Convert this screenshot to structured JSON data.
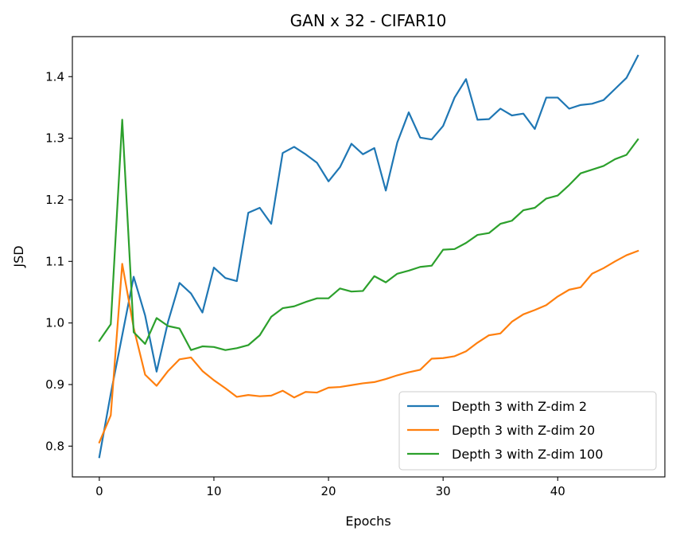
{
  "chart_data": {
    "type": "line",
    "title": "GAN x 32 - CIFAR10",
    "xlabel": "Epochs",
    "ylabel": "JSD",
    "xlim": [
      -2.35,
      49.35
    ],
    "ylim": [
      0.75,
      1.465
    ],
    "xticks": [
      0,
      10,
      20,
      30,
      40
    ],
    "yticks": [
      0.8,
      0.9,
      1.0,
      1.1,
      1.2,
      1.3,
      1.4
    ],
    "ytick_labels": [
      "0.8",
      "0.9",
      "1.0",
      "1.1",
      "1.2",
      "1.3",
      "1.4"
    ],
    "grid": false,
    "legend_position": "lower-right",
    "x": [
      0,
      1,
      2,
      3,
      4,
      5,
      6,
      7,
      8,
      9,
      10,
      11,
      12,
      13,
      14,
      15,
      16,
      17,
      18,
      19,
      20,
      21,
      22,
      23,
      24,
      25,
      26,
      27,
      28,
      29,
      30,
      31,
      32,
      33,
      34,
      35,
      36,
      37,
      38,
      39,
      40,
      41,
      42,
      43,
      44,
      45,
      46,
      47
    ],
    "series": [
      {
        "name": "Depth 3 with Z-dim 2",
        "color": "#1f77b4",
        "values": [
          0.782,
          0.885,
          0.98,
          1.075,
          1.012,
          0.921,
          1.002,
          1.065,
          1.048,
          1.017,
          1.09,
          1.073,
          1.068,
          1.179,
          1.187,
          1.161,
          1.276,
          1.286,
          1.274,
          1.26,
          1.23,
          1.253,
          1.291,
          1.274,
          1.284,
          1.215,
          1.293,
          1.342,
          1.301,
          1.298,
          1.32,
          1.366,
          1.396,
          1.33,
          1.331,
          1.348,
          1.337,
          1.34,
          1.315,
          1.366,
          1.366,
          1.348,
          1.354,
          1.356,
          1.362,
          1.38,
          1.398,
          1.434
        ]
      },
      {
        "name": "Depth 3 with Z-dim 20",
        "color": "#ff7f0e",
        "values": [
          0.806,
          0.85,
          1.096,
          0.992,
          0.916,
          0.898,
          0.922,
          0.941,
          0.944,
          0.922,
          0.907,
          0.894,
          0.88,
          0.883,
          0.881,
          0.882,
          0.89,
          0.879,
          0.888,
          0.887,
          0.895,
          0.896,
          0.899,
          0.902,
          0.904,
          0.909,
          0.915,
          0.92,
          0.924,
          0.942,
          0.943,
          0.946,
          0.954,
          0.968,
          0.98,
          0.983,
          1.002,
          1.014,
          1.021,
          1.029,
          1.043,
          1.054,
          1.058,
          1.08,
          1.089,
          1.1,
          1.11,
          1.117
        ]
      },
      {
        "name": "Depth 3 with Z-dim 100",
        "color": "#2ca02c",
        "values": [
          0.971,
          0.998,
          1.33,
          0.985,
          0.966,
          1.008,
          0.995,
          0.991,
          0.956,
          0.962,
          0.961,
          0.956,
          0.959,
          0.964,
          0.98,
          1.01,
          1.024,
          1.027,
          1.034,
          1.04,
          1.04,
          1.056,
          1.051,
          1.052,
          1.076,
          1.066,
          1.08,
          1.085,
          1.091,
          1.093,
          1.119,
          1.12,
          1.13,
          1.143,
          1.146,
          1.161,
          1.166,
          1.183,
          1.187,
          1.202,
          1.207,
          1.224,
          1.243,
          1.249,
          1.255,
          1.266,
          1.273,
          1.298
        ]
      }
    ]
  }
}
